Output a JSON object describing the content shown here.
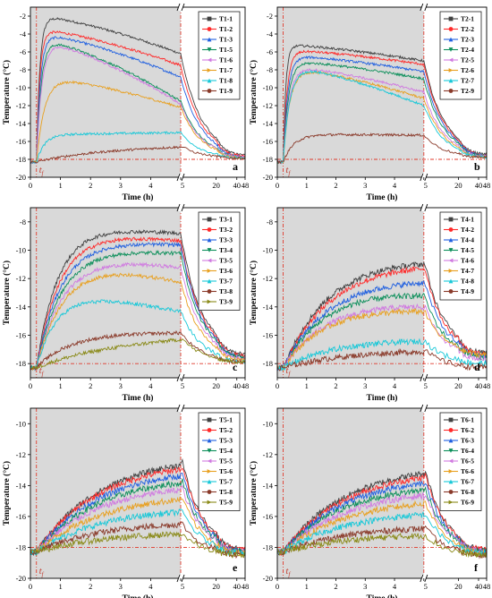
{
  "figure": {
    "colors": {
      "shade": "#d9d9d9",
      "ref_line": "#e0392b",
      "series": [
        "#404040",
        "#ff2a2a",
        "#1f5fe0",
        "#0c8f5a",
        "#d07ae0",
        "#e8a020",
        "#18c8d8",
        "#8a3a2a",
        "#8a8a18"
      ],
      "markers": [
        "square",
        "circle",
        "triangle-up",
        "triangle-down",
        "triangle-left",
        "triangle-right",
        "triangle-up",
        "circle",
        "triangle-right"
      ]
    },
    "tf_label": "tf",
    "tf_sub": "f",
    "t_main": "t"
  },
  "chart_data": [
    {
      "type": "line",
      "letter": "a",
      "xlabel": "Time (h)",
      "ylabel": "Temperature (°C)",
      "ylim": [
        -20,
        -1
      ],
      "yticks": [
        -20,
        -18,
        -16,
        -14,
        -12,
        -10,
        -8,
        -6,
        -4,
        -2
      ],
      "xticks_left": [
        "0",
        "1",
        "2",
        "3",
        "4",
        "5"
      ],
      "xticks_right": [
        "20",
        "40",
        "48"
      ],
      "ref_y": -18,
      "tf_x": 0.2,
      "shaded_until": 5,
      "series": [
        {
          "name": "T1-1",
          "peak": -2.0,
          "end5": -6.2,
          "end48": -17.6,
          "rise": 0.25
        },
        {
          "name": "T1-2",
          "peak": -3.5,
          "end5": -7.5,
          "end48": -17.7,
          "rise": 0.25
        },
        {
          "name": "T1-3",
          "peak": -4.0,
          "end5": -8.8,
          "end48": -17.8,
          "rise": 0.3
        },
        {
          "name": "T1-5",
          "peak": -4.6,
          "end5": -11.5,
          "end48": -17.8,
          "rise": 0.35
        },
        {
          "name": "T1-6",
          "peak": -4.8,
          "end5": -11.8,
          "end48": -17.8,
          "rise": 0.4
        },
        {
          "name": "T1-7",
          "peak": -8.8,
          "end5": -12.2,
          "end48": -17.9,
          "rise": 0.6
        },
        {
          "name": "T1-8",
          "peak": -15.2,
          "end5": -15.0,
          "end48": -17.9,
          "rise": 0.6
        },
        {
          "name": "T1-9",
          "peak": -16.8,
          "end5": -16.5,
          "end48": -17.9,
          "rise": 4.0
        }
      ]
    },
    {
      "type": "line",
      "letter": "b",
      "xlabel": "Time (h)",
      "ylabel": "Temperature (°C)",
      "ylim": [
        -20,
        -1
      ],
      "yticks": [
        -20,
        -18,
        -16,
        -14,
        -12,
        -10,
        -8,
        -6,
        -4,
        -2
      ],
      "xticks_left": [
        "0",
        "1",
        "2",
        "3",
        "4",
        "5"
      ],
      "xticks_right": [
        "20",
        "40",
        "48"
      ],
      "ref_y": -18,
      "tf_x": 0.2,
      "shaded_until": 5,
      "series": [
        {
          "name": "T2-1",
          "peak": -5.2,
          "end5": -7.0,
          "end48": -17.5,
          "rise": 0.2
        },
        {
          "name": "T2-2",
          "peak": -5.8,
          "end5": -7.4,
          "end48": -17.6,
          "rise": 0.3
        },
        {
          "name": "T2-3",
          "peak": -6.4,
          "end5": -8.2,
          "end48": -17.6,
          "rise": 0.35
        },
        {
          "name": "T2-4",
          "peak": -7.0,
          "end5": -9.0,
          "end48": -17.7,
          "rise": 0.4
        },
        {
          "name": "T2-5",
          "peak": -7.6,
          "end5": -10.5,
          "end48": -17.7,
          "rise": 0.45
        },
        {
          "name": "T2-6",
          "peak": -7.8,
          "end5": -11.2,
          "end48": -17.8,
          "rise": 0.5
        },
        {
          "name": "T2-7",
          "peak": -7.6,
          "end5": -12.0,
          "end48": -17.8,
          "rise": 0.5
        },
        {
          "name": "T2-9",
          "peak": -15.2,
          "end5": -15.3,
          "end48": -17.8,
          "rise": 0.8
        }
      ]
    },
    {
      "type": "line",
      "letter": "c",
      "xlabel": "Time (h)",
      "ylabel": "Temperature (°C)",
      "ylim": [
        -19,
        -7
      ],
      "yticks": [
        -18,
        -16,
        -14,
        -12,
        -10,
        -8
      ],
      "xticks_left": [
        "0",
        "1",
        "2",
        "3",
        "4",
        "5"
      ],
      "xticks_right": [
        "20",
        "40",
        "48"
      ],
      "ref_y": -18,
      "tf_x": 0.2,
      "shaded_until": 5,
      "series": [
        {
          "name": "T3-1",
          "peak": -8.3,
          "end5": -8.8,
          "end48": -17.4,
          "rise": 1.6
        },
        {
          "name": "T3-2",
          "peak": -8.8,
          "end5": -9.3,
          "end48": -17.5,
          "rise": 1.7
        },
        {
          "name": "T3-3",
          "peak": -9.3,
          "end5": -9.6,
          "end48": -17.6,
          "rise": 1.8
        },
        {
          "name": "T3-4",
          "peak": -9.8,
          "end5": -10.2,
          "end48": -17.6,
          "rise": 1.9
        },
        {
          "name": "T3-5",
          "peak": -10.3,
          "end5": -11.2,
          "end48": -17.7,
          "rise": 2.0
        },
        {
          "name": "T3-6",
          "peak": -10.8,
          "end5": -12.2,
          "end48": -17.8,
          "rise": 2.0
        },
        {
          "name": "T3-7",
          "peak": -13.0,
          "end5": -14.3,
          "end48": -17.9,
          "rise": 1.5
        },
        {
          "name": "T3-8",
          "peak": -15.8,
          "end5": -15.8,
          "end48": -17.9,
          "rise": 2.5
        },
        {
          "name": "T3-9",
          "peak": -16.5,
          "end5": -16.1,
          "end48": -17.9,
          "rise": 4.5
        }
      ]
    },
    {
      "type": "line",
      "letter": "d",
      "xlabel": "Time (h)",
      "ylabel": "Temperature (°C)",
      "ylim": [
        -19,
        -7
      ],
      "yticks": [
        -18,
        -16,
        -14,
        -12,
        -10,
        -8
      ],
      "xticks_left": [
        "0",
        "1",
        "2",
        "3",
        "4",
        "5"
      ],
      "xticks_right": [
        "20",
        "40",
        "48"
      ],
      "ref_y": -18,
      "tf_x": 0.2,
      "shaded_until": 5,
      "series": [
        {
          "name": "T4-1",
          "peak": -10.4,
          "end5": -10.6,
          "end48": -17.3,
          "rise": 3.5
        },
        {
          "name": "T4-2",
          "peak": -10.8,
          "end5": -10.9,
          "end48": -17.4,
          "rise": 3.6
        },
        {
          "name": "T4-4",
          "peak": -11.8,
          "end5": -12.0,
          "end48": -17.5,
          "rise": 3.5
        },
        {
          "name": "T4-5",
          "peak": -12.4,
          "end5": -13.0,
          "end48": -17.6,
          "rise": 3.4
        },
        {
          "name": "T4-6",
          "peak": -13.4,
          "end5": -13.8,
          "end48": -17.7,
          "rise": 3.4
        },
        {
          "name": "T4-7",
          "peak": -14.0,
          "end5": -14.2,
          "end48": -17.4,
          "rise": 3.0
        },
        {
          "name": "T4-8",
          "peak": -16.2,
          "end5": -16.3,
          "end48": -18.0,
          "rise": 4.0
        },
        {
          "name": "T4-9",
          "peak": -17.0,
          "end5": -17.0,
          "end48": -18.3,
          "rise": 5.0
        }
      ]
    },
    {
      "type": "line",
      "letter": "e",
      "xlabel": "Time (h)",
      "ylabel": "Temperature (°C)",
      "ylim": [
        -20,
        -9
      ],
      "yticks": [
        -20,
        -18,
        -16,
        -14,
        -12,
        -10
      ],
      "xticks_left": [
        "0",
        "1",
        "2",
        "3",
        "4",
        "5"
      ],
      "xticks_right": [
        "20",
        "40",
        "48"
      ],
      "ref_y": -18,
      "tf_x": 0.2,
      "shaded_until": 5,
      "series": [
        {
          "name": "T5-1",
          "peak": -12.0,
          "end5": -12.0,
          "end48": -18.2,
          "rise": 4.8
        },
        {
          "name": "T5-2",
          "peak": -12.2,
          "end5": -12.3,
          "end48": -18.2,
          "rise": 4.8
        },
        {
          "name": "T5-3",
          "peak": -12.7,
          "end5": -12.8,
          "end48": -18.3,
          "rise": 4.8
        },
        {
          "name": "T5-4",
          "peak": -13.2,
          "end5": -13.3,
          "end48": -18.3,
          "rise": 4.8
        },
        {
          "name": "T5-5",
          "peak": -13.7,
          "end5": -13.8,
          "end48": -18.3,
          "rise": 4.8
        },
        {
          "name": "T5-6",
          "peak": -14.5,
          "end5": -14.5,
          "end48": -18.4,
          "rise": 4.8
        },
        {
          "name": "T5-7",
          "peak": -15.4,
          "end5": -15.4,
          "end48": -18.4,
          "rise": 4.8
        },
        {
          "name": "T5-8",
          "peak": -16.3,
          "end5": -16.3,
          "end48": -18.5,
          "rise": 4.8
        },
        {
          "name": "T5-9",
          "peak": -17.0,
          "end5": -17.0,
          "end48": -18.5,
          "rise": 5.0
        }
      ]
    },
    {
      "type": "line",
      "letter": "f",
      "xlabel": "Time (h)",
      "ylabel": "Temperature (°C)",
      "ylim": [
        -20,
        -9
      ],
      "yticks": [
        -20,
        -18,
        -16,
        -14,
        -12,
        -10
      ],
      "xticks_left": [
        "0",
        "1",
        "2",
        "3",
        "4",
        "5"
      ],
      "xticks_right": [
        "20",
        "40",
        "48"
      ],
      "ref_y": -18,
      "tf_x": 0.2,
      "shaded_until": 5,
      "series": [
        {
          "name": "T6-1",
          "peak": -12.6,
          "end5": -12.6,
          "end48": -18.2,
          "rise": 4.8
        },
        {
          "name": "T6-2",
          "peak": -12.9,
          "end5": -12.9,
          "end48": -18.2,
          "rise": 4.8
        },
        {
          "name": "T6-3",
          "peak": -13.3,
          "end5": -13.3,
          "end48": -18.3,
          "rise": 4.8
        },
        {
          "name": "T6-4",
          "peak": -13.7,
          "end5": -13.8,
          "end48": -18.3,
          "rise": 4.8
        },
        {
          "name": "T6-5",
          "peak": -14.2,
          "end5": -14.2,
          "end48": -18.3,
          "rise": 4.8
        },
        {
          "name": "T6-6",
          "peak": -14.8,
          "end5": -14.8,
          "end48": -18.4,
          "rise": 4.8
        },
        {
          "name": "T6-7",
          "peak": -15.6,
          "end5": -15.6,
          "end48": -18.4,
          "rise": 4.8
        },
        {
          "name": "T6-8",
          "peak": -16.6,
          "end5": -16.6,
          "end48": -18.5,
          "rise": 4.8
        },
        {
          "name": "T6-9",
          "peak": -17.1,
          "end5": -17.1,
          "end48": -18.5,
          "rise": 5.0
        }
      ]
    }
  ]
}
